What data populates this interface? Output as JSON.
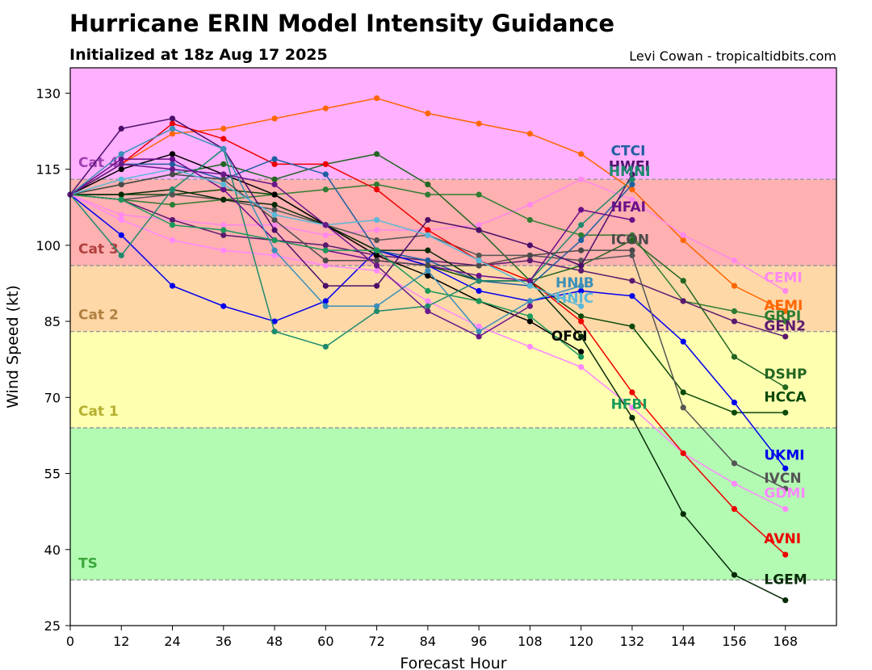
{
  "header": {
    "title": "Hurricane ERIN Model Intensity Guidance",
    "subtitle": "Initialized at 18z Aug 17 2025",
    "credit": "Levi Cowan - tropicaltidbits.com"
  },
  "chart_data": {
    "type": "line",
    "xlabel": "Forecast Hour",
    "ylabel": "Wind Speed (kt)",
    "xlim": [
      0,
      180
    ],
    "ylim": [
      25,
      135
    ],
    "xticks": [
      0,
      12,
      24,
      36,
      48,
      60,
      72,
      84,
      96,
      108,
      120,
      132,
      144,
      156,
      168
    ],
    "yticks": [
      25,
      40,
      55,
      70,
      85,
      100,
      115,
      130
    ],
    "bands": [
      {
        "label": "TS",
        "from": 34,
        "to": 64,
        "color": "#b3fab3",
        "label_color": "#3aa83a"
      },
      {
        "label": "Cat 1",
        "from": 64,
        "to": 83,
        "color": "#ffffb0",
        "label_color": "#b5b030"
      },
      {
        "label": "Cat 2",
        "from": 83,
        "to": 96,
        "color": "#ffd8a8",
        "label_color": "#b08040"
      },
      {
        "label": "Cat 3",
        "from": 96,
        "to": 113,
        "color": "#ffb0b0",
        "label_color": "#b04040"
      },
      {
        "label": "Cat 4",
        "from": 113,
        "to": 135,
        "color": "#ffb0ff",
        "label_color": "#a040b0"
      }
    ],
    "series": [
      {
        "name": "AEMI",
        "color": "#ff6600",
        "x": [
          0,
          12,
          24,
          36,
          48,
          60,
          72,
          84,
          96,
          108,
          120,
          132,
          144,
          156,
          168
        ],
        "y": [
          110,
          116,
          122,
          123,
          125,
          127,
          129,
          126,
          124,
          122,
          118,
          111,
          101,
          92,
          87
        ],
        "label": {
          "x": 163,
          "y": 88
        }
      },
      {
        "name": "CEMI",
        "color": "#ff88ee",
        "x": [
          0,
          12,
          24,
          36,
          48,
          60,
          72,
          84,
          96,
          108,
          120,
          132,
          144,
          156,
          168
        ],
        "y": [
          110,
          106,
          105,
          104,
          104,
          102,
          103,
          103,
          104,
          108,
          113,
          109,
          102,
          97,
          91
        ],
        "label": {
          "x": 163,
          "y": 93.5
        }
      },
      {
        "name": "GRPI",
        "color": "#2e7d32",
        "x": [
          0,
          12,
          24,
          36,
          48,
          60,
          72,
          84,
          96,
          108,
          120,
          132,
          144,
          156,
          168
        ],
        "y": [
          110,
          109,
          108,
          109,
          110,
          111,
          112,
          110,
          110,
          105,
          102,
          102,
          89,
          87,
          85
        ],
        "label": {
          "x": 163,
          "y": 86
        }
      },
      {
        "name": "GEN2",
        "color": "#5a1a6e",
        "x": [
          0,
          12,
          24,
          36,
          48,
          60,
          72,
          84,
          96,
          108,
          120,
          132,
          144,
          156,
          168
        ],
        "y": [
          110,
          109,
          105,
          102,
          101,
          100,
          98,
          97,
          96,
          97,
          95,
          93,
          89,
          85,
          82
        ],
        "label": {
          "x": 163,
          "y": 84
        }
      },
      {
        "name": "DSHP",
        "color": "#226622",
        "x": [
          0,
          12,
          24,
          36,
          48,
          60,
          72,
          84,
          96,
          108,
          120,
          132,
          144,
          156,
          168
        ],
        "y": [
          110,
          112,
          114,
          116,
          113,
          116,
          118,
          112,
          103,
          93,
          96,
          101,
          93,
          78,
          72
        ],
        "label": {
          "x": 163,
          "y": 74.5
        }
      },
      {
        "name": "HCCA",
        "color": "#0a4a0a",
        "x": [
          0,
          12,
          24,
          36,
          48,
          60,
          72,
          84,
          96,
          108,
          120,
          132,
          144,
          156,
          168
        ],
        "y": [
          110,
          110,
          110,
          111,
          110,
          104,
          99,
          96,
          93,
          93,
          86,
          84,
          71,
          67,
          67
        ],
        "label": {
          "x": 163,
          "y": 70
        }
      },
      {
        "name": "UKMI",
        "color": "#0000ee",
        "x": [
          0,
          12,
          24,
          36,
          48,
          60,
          72,
          84,
          96,
          108,
          120,
          132,
          144,
          156,
          168
        ],
        "y": [
          110,
          102,
          92,
          88,
          85,
          89,
          99,
          96,
          91,
          89,
          91,
          90,
          81,
          69,
          56
        ],
        "label": {
          "x": 163,
          "y": 58.5
        }
      },
      {
        "name": "IVCN",
        "color": "#555555",
        "x": [
          0,
          12,
          24,
          36,
          48,
          60,
          72,
          84,
          96,
          108,
          120,
          132,
          144,
          156,
          168
        ],
        "y": [
          110,
          109,
          110,
          109,
          107,
          104,
          101,
          102,
          98,
          98,
          97,
          98,
          68,
          57,
          52
        ],
        "label": {
          "x": 163,
          "y": 54
        }
      },
      {
        "name": "GDMI",
        "color": "#ff88ff",
        "x": [
          0,
          12,
          24,
          36,
          48,
          60,
          72,
          84,
          96,
          108,
          120,
          132,
          144,
          156,
          168
        ],
        "y": [
          110,
          105,
          101,
          99,
          98,
          96,
          95,
          89,
          84,
          80,
          76,
          68,
          59,
          53,
          48
        ],
        "label": {
          "x": 163,
          "y": 51
        }
      },
      {
        "name": "AVNI",
        "color": "#ee0000",
        "x": [
          0,
          12,
          24,
          36,
          48,
          60,
          72,
          84,
          96,
          108,
          120,
          132,
          144,
          156,
          168
        ],
        "y": [
          110,
          116,
          124,
          121,
          116,
          116,
          111,
          103,
          97,
          93,
          85,
          71,
          59,
          48,
          39
        ],
        "label": {
          "x": 163,
          "y": 42
        }
      },
      {
        "name": "LGEM",
        "color": "#072a07",
        "x": [
          0,
          12,
          24,
          36,
          48,
          60,
          72,
          84,
          96,
          108,
          120,
          132,
          144,
          156,
          168
        ],
        "y": [
          110,
          110,
          111,
          109,
          108,
          104,
          99,
          99,
          93,
          93,
          82,
          66,
          47,
          35,
          30
        ],
        "label": {
          "x": 163,
          "y": 34
        }
      },
      {
        "name": "OFCI",
        "color": "#000000",
        "x": [
          0,
          12,
          24,
          36,
          48,
          60,
          72,
          84,
          96,
          108,
          120
        ],
        "y": [
          110,
          115,
          118,
          114,
          110,
          104,
          98,
          94,
          89,
          85,
          79
        ],
        "label": {
          "x": 113,
          "y": 82
        }
      },
      {
        "name": "CTCI",
        "color": "#1f5fa0",
        "x": [
          0,
          12,
          24,
          36,
          48,
          60,
          72,
          84,
          96,
          108,
          120,
          132
        ],
        "y": [
          110,
          116,
          116,
          113,
          117,
          114,
          99,
          97,
          93,
          92,
          101,
          112
        ],
        "label": {
          "x": 127,
          "y": 118.5
        }
      },
      {
        "name": "HWFI",
        "color": "#4b0f6a",
        "x": [
          0,
          12,
          24,
          36,
          48,
          60,
          72,
          84,
          96,
          108,
          120,
          132
        ],
        "y": [
          110,
          123,
          125,
          119,
          103,
          92,
          92,
          105,
          103,
          100,
          96,
          114
        ],
        "label": {
          "x": 126.5,
          "y": 115.5
        }
      },
      {
        "name": "HMNI",
        "color": "#1e8a6e",
        "x": [
          0,
          12,
          24,
          36,
          48,
          60,
          72,
          84,
          96,
          108,
          120,
          132
        ],
        "y": [
          110,
          98,
          111,
          119,
          83,
          80,
          87,
          88,
          93,
          93,
          104,
          113
        ],
        "label": {
          "x": 126.5,
          "y": 114.5
        }
      },
      {
        "name": "HFAI",
        "color": "#6a0f8a",
        "x": [
          0,
          12,
          24,
          36,
          48,
          60,
          72,
          84,
          96,
          108,
          120,
          132
        ],
        "y": [
          110,
          117,
          117,
          111,
          101,
          99,
          97,
          96,
          94,
          93,
          107,
          105
        ],
        "label": {
          "x": 127,
          "y": 107.5
        }
      },
      {
        "name": "ICON",
        "color": "#4a4a4a",
        "x": [
          0,
          12,
          24,
          36,
          48,
          60,
          72,
          84,
          96,
          108,
          120,
          132
        ],
        "y": [
          110,
          112,
          114,
          113,
          105,
          97,
          97,
          96,
          96,
          98,
          99,
          99
        ],
        "label": {
          "x": 127,
          "y": 101
        }
      },
      {
        "name": "HNIB",
        "color": "#3a8fb8",
        "x": [
          0,
          12,
          24,
          36,
          48,
          60,
          72,
          84,
          96,
          108,
          120
        ],
        "y": [
          110,
          118,
          123,
          119,
          99,
          88,
          88,
          95,
          83,
          89,
          92
        ],
        "label": {
          "x": 114,
          "y": 92.5
        }
      },
      {
        "name": "HNIC",
        "color": "#5ab8d8",
        "x": [
          0,
          12,
          24,
          36,
          48,
          60,
          72,
          84,
          96,
          108,
          120
        ],
        "y": [
          110,
          113,
          115,
          112,
          106,
          104,
          105,
          102,
          97,
          92,
          88
        ],
        "label": {
          "x": 114,
          "y": 89.5
        }
      },
      {
        "name": "HFBI",
        "color": "#1a9a5a",
        "x": [
          0,
          12,
          24,
          36,
          48,
          60,
          72,
          84,
          96,
          108,
          120
        ],
        "y": [
          110,
          109,
          104,
          103,
          101,
          99,
          99,
          91,
          89,
          86,
          78
        ],
        "label": {
          "x": 127,
          "y": 68.5
        }
      },
      {
        "name": "",
        "color": "#6a1a8a",
        "x": [
          0,
          12,
          24,
          36,
          48,
          60,
          72,
          84,
          96,
          108
        ],
        "y": [
          110,
          116,
          115,
          114,
          112,
          104,
          96,
          87,
          82,
          88
        ],
        "label": null
      }
    ]
  }
}
